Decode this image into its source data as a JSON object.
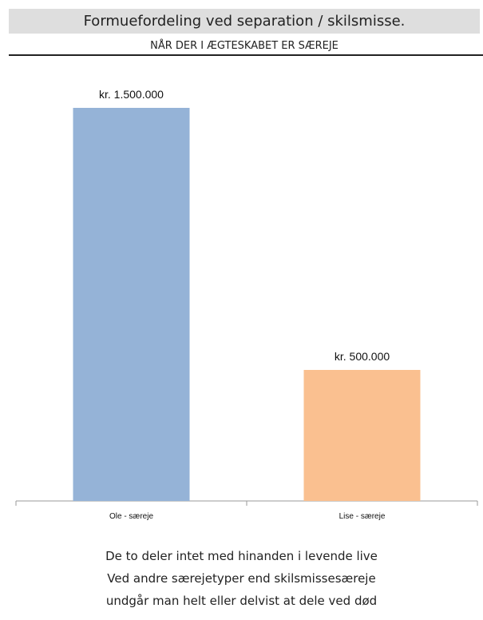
{
  "header": {
    "title": "Formuefordeling ved separation / skilsmisse.",
    "subtitle": "NÅR DER I ÆGTESKABET ER SÆREJE"
  },
  "chart_data": {
    "type": "bar",
    "categories": [
      "Ole - særeje",
      "Lise - særeje"
    ],
    "values": [
      1500000,
      500000
    ],
    "value_labels": [
      "kr. 1.500.000",
      "kr. 500.000"
    ],
    "colors": [
      "#95b3d7",
      "#fac090"
    ],
    "ylim": [
      0,
      1500000
    ]
  },
  "caption": {
    "lines": [
      "De to deler intet med hinanden i levende live",
      "Ved andre særejetyper end skilsmissesæreje",
      "undgår man helt eller delvist at dele ved død"
    ]
  }
}
